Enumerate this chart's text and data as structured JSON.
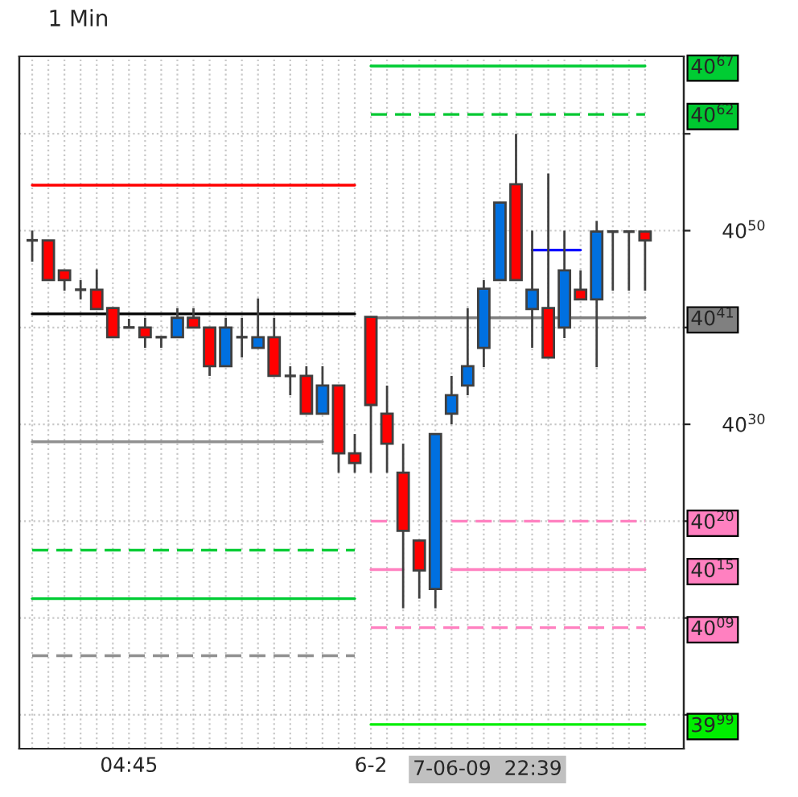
{
  "chart_data": {
    "type": "candlestick",
    "title": "1 Min",
    "categories": [
      null,
      null,
      null,
      null,
      null,
      null,
      "04:45",
      null,
      null,
      null,
      null,
      null,
      null,
      null,
      null,
      null,
      null,
      null,
      null,
      null,
      null,
      "6-2",
      null,
      null,
      null,
      null,
      null,
      null,
      null,
      null,
      null,
      null,
      null,
      null,
      null,
      null,
      null,
      null,
      null
    ],
    "ohlc": [
      [
        4049,
        4050,
        4046.8,
        4049
      ],
      [
        4049,
        4049,
        4044.9,
        4044.9
      ],
      [
        4045.9,
        4045.9,
        4043.8,
        4044.9
      ],
      [
        4043.9,
        4044.9,
        4042.9,
        4043.9
      ],
      [
        4043.9,
        4046,
        4041.9,
        4041.9
      ],
      [
        4042,
        4042,
        4039,
        4039
      ],
      [
        4040,
        4040.9,
        4040,
        4040
      ],
      [
        4040,
        4041,
        4037.9,
        4039
      ],
      [
        4039,
        4039,
        4037.9,
        4039
      ],
      [
        4039,
        4042,
        4039,
        4041
      ],
      [
        4041,
        4042,
        4040,
        4040
      ],
      [
        4040,
        4040,
        4035,
        4036
      ],
      [
        4036,
        4041,
        4036,
        4040
      ],
      [
        4039,
        4041,
        4036.9,
        4039
      ],
      [
        4037.9,
        4043,
        4037.9,
        4039
      ],
      [
        4039,
        4041,
        4035,
        4035
      ],
      [
        4035,
        4036,
        4033,
        4035
      ],
      [
        4035,
        4036,
        4031.1,
        4031.1
      ],
      [
        4031.1,
        4036,
        4031.1,
        4034
      ],
      [
        4034,
        4034,
        4025,
        4027
      ],
      [
        4027,
        4029,
        4025,
        4026
      ],
      [
        4041.1,
        4041.1,
        4025,
        4032
      ],
      [
        4031.1,
        4034,
        4025,
        4028
      ],
      [
        4025,
        4028,
        4011,
        4019
      ],
      [
        4018,
        4018,
        4012,
        4014.9
      ],
      [
        4013,
        4029,
        4011,
        4029
      ],
      [
        4031.1,
        4035,
        4030,
        4033
      ],
      [
        4034,
        4042,
        4033,
        4036
      ],
      [
        4037.9,
        4044.9,
        4035.9,
        4044
      ],
      [
        4044.9,
        4052.9,
        4044.9,
        4052.9
      ],
      [
        4054.8,
        4060,
        4044.9,
        4044.9
      ],
      [
        4041.9,
        4050,
        4037.9,
        4043.9
      ],
      [
        4042,
        4055.9,
        4036.9,
        4036.9
      ],
      [
        4040,
        4050,
        4038.9,
        4045.9
      ],
      [
        4043.9,
        4045.9,
        4042.9,
        4042.9
      ],
      [
        4042.9,
        4051,
        4035.9,
        4049.9
      ],
      [
        4049.9,
        4049.9,
        4043.8,
        4049.9
      ],
      [
        4049.9,
        4049.9,
        4043.8,
        4049.9
      ],
      [
        4049.9,
        4049.9,
        4043.8,
        4049
      ]
    ],
    "colors": [
      "#404040",
      "#ff0000",
      "#ff0000",
      "#404040",
      "#ff0000",
      "#ff0000",
      "#404040",
      "#ff0000",
      "#404040",
      "#0070e0",
      "#ff0000",
      "#ff0000",
      "#0070e0",
      "#404040",
      "#0070e0",
      "#ff0000",
      "#404040",
      "#ff0000",
      "#0070e0",
      "#ff0000",
      "#ff0000",
      "#ff0000",
      "#ff0000",
      "#ff0000",
      "#ff0000",
      "#0070e0",
      "#0070e0",
      "#0070e0",
      "#0070e0",
      "#0070e0",
      "#ff0000",
      "#0070e0",
      "#ff0000",
      "#0070e0",
      "#ff0000",
      "#0070e0",
      "#404040",
      "#404040",
      "#ff0000"
    ],
    "series": [
      {
        "type": "line",
        "color": "#ff0000",
        "line_style": "solid",
        "values": [
          4054.7,
          4054.7,
          4054.7,
          4054.7,
          4054.7,
          4054.7,
          4054.7,
          4054.7,
          4054.7,
          4054.7,
          4054.7,
          4054.7,
          4054.7,
          4054.7,
          4054.7,
          4054.7,
          4054.7,
          4054.7,
          4054.7,
          4054.7,
          4054.7,
          null,
          null,
          null,
          null,
          null,
          null,
          null,
          null,
          null,
          null,
          null,
          null,
          null,
          null,
          null,
          null,
          null,
          null
        ]
      },
      {
        "type": "line",
        "color": "#000000",
        "line_style": "solid",
        "values": [
          4041.4,
          4041.4,
          4041.4,
          4041.4,
          4041.4,
          4041.4,
          4041.4,
          4041.4,
          4041.4,
          4041.4,
          4041.4,
          4041.4,
          4041.4,
          4041.4,
          4041.4,
          4041.4,
          4041.4,
          4041.4,
          4041.4,
          4041.4,
          4041.4,
          null,
          null,
          null,
          null,
          null,
          null,
          null,
          null,
          null,
          null,
          null,
          null,
          null,
          null,
          null,
          null,
          null,
          null
        ]
      },
      {
        "type": "line",
        "color": "#909090",
        "line_style": "solid",
        "values": [
          4028.2,
          4028.2,
          4028.2,
          4028.2,
          4028.2,
          4028.2,
          4028.2,
          4028.2,
          4028.2,
          4028.2,
          4028.2,
          4028.2,
          4028.2,
          4028.2,
          4028.2,
          4028.2,
          4028.2,
          4028.2,
          4028.2,
          null,
          null,
          null,
          null,
          null,
          null,
          null,
          null,
          null,
          null,
          null,
          null,
          null,
          null,
          null,
          null,
          null,
          null,
          null,
          null
        ]
      },
      {
        "type": "line",
        "color": "#00cc33",
        "line_style": "dashed",
        "values": [
          4017,
          4017,
          4017,
          4017,
          4017,
          4017,
          4017,
          4017,
          4017,
          4017,
          4017,
          4017,
          4017,
          4017,
          4017,
          4017,
          4017,
          4017,
          4017,
          4017,
          4017,
          null,
          null,
          null,
          null,
          null,
          null,
          null,
          null,
          null,
          null,
          null,
          null,
          null,
          null,
          null,
          null,
          null,
          null
        ]
      },
      {
        "type": "line",
        "color": "#00cc33",
        "line_style": "solid",
        "values": [
          4012,
          4012,
          4012,
          4012,
          4012,
          4012,
          4012,
          4012,
          4012,
          4012,
          4012,
          4012,
          4012,
          4012,
          4012,
          4012,
          4012,
          4012,
          4012,
          4012,
          4012,
          null,
          null,
          null,
          null,
          null,
          null,
          null,
          null,
          null,
          null,
          null,
          null,
          null,
          null,
          null,
          null,
          null,
          null
        ]
      },
      {
        "type": "line",
        "color": "#909090",
        "line_style": "dashed",
        "values": [
          4006.1,
          4006.1,
          4006.1,
          4006.1,
          4006.1,
          4006.1,
          4006.1,
          4006.1,
          4006.1,
          4006.1,
          4006.1,
          4006.1,
          4006.1,
          4006.1,
          4006.1,
          4006.1,
          4006.1,
          4006.1,
          4006.1,
          4006.1,
          4006.1,
          null,
          null,
          null,
          null,
          null,
          null,
          null,
          null,
          null,
          null,
          null,
          null,
          null,
          null,
          null,
          null,
          null,
          null
        ]
      },
      {
        "type": "line",
        "color": "#00cc33",
        "line_style": "solid",
        "values": [
          null,
          null,
          null,
          null,
          null,
          null,
          null,
          null,
          null,
          null,
          null,
          null,
          null,
          null,
          null,
          null,
          null,
          null,
          null,
          null,
          null,
          4067,
          4067,
          4067,
          4067,
          4067,
          4067,
          4067,
          4067,
          4067,
          4067,
          4067,
          4067,
          4067,
          4067,
          4067,
          4067,
          4067,
          4067
        ]
      },
      {
        "type": "line",
        "color": "#00c830",
        "line_style": "dashed",
        "values": [
          null,
          null,
          null,
          null,
          null,
          null,
          null,
          null,
          null,
          null,
          null,
          null,
          null,
          null,
          null,
          null,
          null,
          null,
          null,
          null,
          null,
          4062,
          4062,
          4062,
          4062,
          4062,
          4062,
          4062,
          4062,
          4062,
          4062,
          4062,
          4062,
          4062,
          4062,
          4062,
          4062,
          4062,
          4062
        ]
      },
      {
        "type": "line",
        "color": "#808080",
        "line_style": "solid",
        "values": [
          null,
          null,
          null,
          null,
          null,
          null,
          null,
          null,
          null,
          null,
          null,
          null,
          null,
          null,
          null,
          null,
          null,
          null,
          null,
          null,
          null,
          4041,
          4041,
          4041,
          4041,
          4041,
          4041,
          4041,
          4041,
          4041,
          4041,
          4041,
          4041,
          4041,
          4041,
          4041,
          4041,
          4041,
          4041
        ]
      },
      {
        "type": "line",
        "color": "#ff80c0",
        "line_style": "dashed",
        "values": [
          null,
          null,
          null,
          null,
          null,
          null,
          null,
          null,
          null,
          null,
          null,
          null,
          null,
          null,
          null,
          null,
          null,
          null,
          null,
          null,
          null,
          4020,
          4020,
          null,
          null,
          null,
          4020,
          4020,
          4020,
          4020,
          4020,
          4020,
          4020,
          4020,
          4020,
          4020,
          4020,
          4020,
          4020
        ]
      },
      {
        "type": "line",
        "color": "#ff80c0",
        "line_style": "solid",
        "values": [
          null,
          null,
          null,
          null,
          null,
          null,
          null,
          null,
          null,
          null,
          null,
          null,
          null,
          null,
          null,
          null,
          null,
          null,
          null,
          null,
          null,
          4015,
          4015,
          4015,
          null,
          null,
          4015,
          4015,
          4015,
          4015,
          4015,
          4015,
          4015,
          4015,
          4015,
          4015,
          4015,
          4015,
          4015
        ]
      },
      {
        "type": "line",
        "color": "#ff80c0",
        "line_style": "dashed",
        "values": [
          null,
          null,
          null,
          null,
          null,
          null,
          null,
          null,
          null,
          null,
          null,
          null,
          null,
          null,
          null,
          null,
          null,
          null,
          null,
          null,
          null,
          4009,
          4009,
          4009,
          4009,
          4009,
          4009,
          4009,
          4009,
          4009,
          4009,
          4009,
          4009,
          4009,
          4009,
          4009,
          4009,
          4009,
          4009
        ]
      },
      {
        "type": "line",
        "color": "#00ee00",
        "line_style": "solid",
        "values": [
          null,
          null,
          null,
          null,
          null,
          null,
          null,
          null,
          null,
          null,
          null,
          null,
          null,
          null,
          null,
          null,
          null,
          null,
          null,
          null,
          null,
          3999,
          3999,
          3999,
          3999,
          3999,
          3999,
          3999,
          3999,
          3999,
          3999,
          3999,
          3999,
          3999,
          3999,
          3999,
          3999,
          3999,
          3999
        ]
      },
      {
        "type": "line",
        "color": "#0000ff",
        "line_style": "solid",
        "values": [
          null,
          null,
          null,
          null,
          null,
          null,
          null,
          null,
          null,
          null,
          null,
          null,
          null,
          null,
          null,
          null,
          null,
          null,
          null,
          null,
          null,
          null,
          null,
          null,
          null,
          null,
          null,
          null,
          null,
          null,
          null,
          4048,
          4048,
          4048,
          4048,
          null,
          null,
          null,
          null
        ]
      }
    ],
    "ylim": [
      3996.5,
      4068
    ],
    "yticks": [
      {
        "value": 4000,
        "label": null
      },
      {
        "value": 4010,
        "label": null
      },
      {
        "value": 4020,
        "label": null
      },
      4030,
      {
        "value": 4040,
        "label": null
      },
      4050,
      {
        "value": 4060,
        "label": null
      }
    ],
    "y2lim": [
      3996.5,
      4068
    ],
    "y2ticks": [
      3999,
      4009,
      4015,
      4020,
      4041,
      4062,
      4067
    ],
    "grid": true,
    "annotations": [
      "7-06-09  22:39"
    ]
  }
}
